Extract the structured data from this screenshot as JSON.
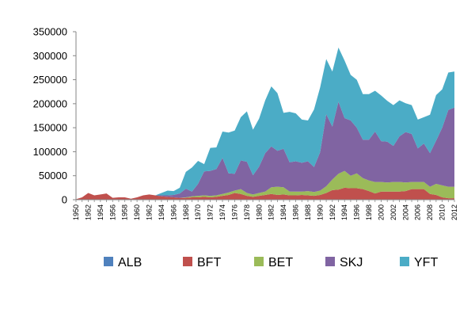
{
  "chart_data": {
    "type": "area",
    "stacked": true,
    "legend_position": "bottom",
    "grid": false,
    "ylim": [
      0,
      350000
    ],
    "yticks": [
      0,
      50000,
      100000,
      150000,
      200000,
      250000,
      300000,
      350000
    ],
    "ytick_labels": [
      "0",
      "50000",
      "100000",
      "150000",
      "200000",
      "250000",
      "300000",
      "350000"
    ],
    "xticks": [
      1950,
      1952,
      1954,
      1956,
      1958,
      1960,
      1962,
      1964,
      1966,
      1968,
      1970,
      1972,
      1974,
      1976,
      1978,
      1980,
      1982,
      1984,
      1986,
      1988,
      1990,
      1992,
      1994,
      1996,
      1998,
      2000,
      2002,
      2004,
      2006,
      2008,
      2010,
      2012
    ],
    "x": [
      1950,
      1951,
      1952,
      1953,
      1954,
      1955,
      1956,
      1957,
      1958,
      1959,
      1960,
      1961,
      1962,
      1963,
      1964,
      1965,
      1966,
      1967,
      1968,
      1969,
      1970,
      1971,
      1972,
      1973,
      1974,
      1975,
      1976,
      1977,
      1978,
      1979,
      1980,
      1981,
      1982,
      1983,
      1984,
      1985,
      1986,
      1987,
      1988,
      1989,
      1990,
      1991,
      1992,
      1993,
      1994,
      1995,
      1996,
      1997,
      1998,
      1999,
      2000,
      2001,
      2002,
      2003,
      2004,
      2005,
      2006,
      2007,
      2008,
      2009,
      2010,
      2011,
      2012
    ],
    "series": [
      {
        "name": "ALB",
        "color": "#4f81bd",
        "values": [
          0,
          0,
          0,
          0,
          0,
          0,
          0,
          0,
          0,
          0,
          0,
          0,
          0,
          0,
          0,
          0,
          0,
          0,
          0,
          0,
          0,
          0,
          0,
          0,
          0,
          0,
          0,
          0,
          0,
          0,
          0,
          0,
          0,
          0,
          0,
          0,
          0,
          0,
          0,
          0,
          0,
          0,
          0,
          0,
          0,
          0,
          0,
          0,
          0,
          0,
          0,
          0,
          0,
          0,
          0,
          0,
          0,
          0,
          0,
          0,
          0,
          0,
          0
        ]
      },
      {
        "name": "BFT",
        "color": "#c0504d",
        "values": [
          1000,
          5000,
          14000,
          9000,
          11000,
          13000,
          4000,
          5000,
          5000,
          2000,
          5000,
          9000,
          11000,
          9000,
          7000,
          6000,
          5000,
          4000,
          4000,
          5000,
          5000,
          6000,
          5000,
          6000,
          8000,
          10000,
          14000,
          12000,
          8000,
          6000,
          8000,
          10000,
          12000,
          10000,
          11000,
          9000,
          9000,
          10000,
          9000,
          8000,
          10000,
          14000,
          20000,
          21000,
          25000,
          24000,
          24000,
          22000,
          18000,
          13000,
          17000,
          17000,
          17000,
          17000,
          18000,
          22000,
          22000,
          22000,
          12000,
          10000,
          5000,
          3000,
          3000
        ]
      },
      {
        "name": "BET",
        "color": "#9bbb59",
        "values": [
          0,
          0,
          0,
          0,
          0,
          0,
          0,
          0,
          0,
          0,
          0,
          0,
          0,
          0,
          0,
          0,
          0,
          0,
          1000,
          2000,
          3000,
          3000,
          3000,
          3000,
          4000,
          5000,
          5000,
          10000,
          6000,
          5000,
          6000,
          7000,
          14000,
          17000,
          15000,
          8000,
          8000,
          7000,
          9000,
          8000,
          9000,
          14000,
          22000,
          33000,
          35000,
          26000,
          31000,
          23000,
          22000,
          24000,
          20000,
          19000,
          20000,
          20000,
          18000,
          15000,
          15000,
          15000,
          15000,
          23000,
          25000,
          24000,
          24000
        ]
      },
      {
        "name": "SKJ",
        "color": "#8064a2",
        "values": [
          0,
          0,
          0,
          0,
          0,
          0,
          0,
          0,
          0,
          0,
          0,
          0,
          0,
          0,
          2000,
          3000,
          5000,
          9000,
          18000,
          10000,
          25000,
          50000,
          52000,
          55000,
          75000,
          40000,
          35000,
          60000,
          65000,
          40000,
          55000,
          80000,
          85000,
          75000,
          80000,
          61000,
          63000,
          60000,
          62000,
          52000,
          80000,
          150000,
          110000,
          150000,
          110000,
          115000,
          95000,
          80000,
          85000,
          105000,
          85000,
          85000,
          75000,
          95000,
          105000,
          100000,
          70000,
          80000,
          70000,
          90000,
          120000,
          160000,
          165000
        ]
      },
      {
        "name": "YFT",
        "color": "#4bacc6",
        "values": [
          0,
          0,
          0,
          0,
          0,
          0,
          0,
          0,
          0,
          0,
          0,
          0,
          0,
          0,
          5000,
          10000,
          8000,
          12000,
          35000,
          50000,
          48000,
          15000,
          48000,
          45000,
          55000,
          85000,
          90000,
          90000,
          105000,
          95000,
          100000,
          110000,
          125000,
          120000,
          75000,
          105000,
          100000,
          90000,
          85000,
          120000,
          135000,
          115000,
          115000,
          113000,
          120000,
          95000,
          100000,
          95000,
          95000,
          85000,
          95000,
          85000,
          85000,
          75000,
          60000,
          60000,
          60000,
          55000,
          80000,
          95000,
          80000,
          78000,
          75000
        ]
      }
    ]
  }
}
